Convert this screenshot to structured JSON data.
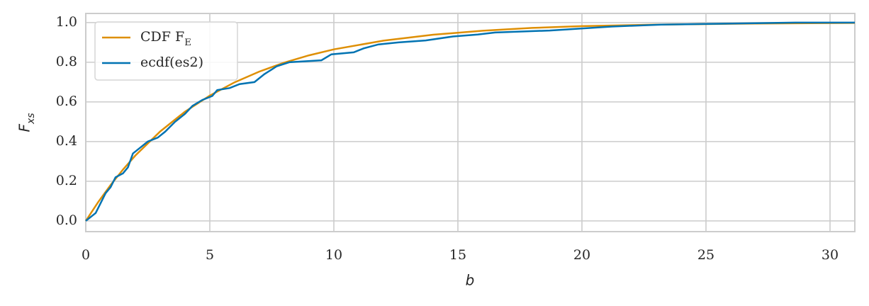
{
  "chart_data": {
    "type": "line",
    "xlabel": "b",
    "ylabel": "F_xs",
    "xlim": [
      0,
      31
    ],
    "ylim": [
      -0.054,
      1.046
    ],
    "xticks": [
      0,
      5,
      10,
      15,
      20,
      25,
      30
    ],
    "yticks": [
      {
        "value": 0,
        "label": "0.0"
      },
      0.2,
      0.4,
      0.6,
      0.8,
      {
        "value": 1,
        "label": "1.0"
      }
    ],
    "grid": true,
    "legend": "upper left",
    "series": [
      {
        "name": "CDF F_E",
        "color": "#de8f05",
        "x": [
          0,
          0.5,
          1,
          1.5,
          2,
          3,
          4,
          5,
          6,
          7,
          8,
          9,
          10,
          12,
          14,
          16,
          18,
          20,
          23,
          27,
          31
        ],
        "values": [
          0,
          0.095,
          0.181,
          0.259,
          0.33,
          0.451,
          0.551,
          0.632,
          0.699,
          0.753,
          0.798,
          0.835,
          0.865,
          0.909,
          0.939,
          0.959,
          0.973,
          0.982,
          0.99,
          0.995,
          0.998
        ]
      },
      {
        "name": "ecdf(es2)",
        "color": "#0173b2",
        "x": [
          0,
          0.2,
          0.4,
          0.6,
          0.8,
          1.0,
          1.2,
          1.5,
          1.7,
          1.9,
          2.2,
          2.5,
          2.9,
          3.2,
          3.6,
          4.0,
          4.3,
          4.7,
          5.1,
          5.3,
          5.8,
          6.2,
          6.8,
          7.2,
          7.7,
          8.2,
          9.5,
          9.9,
          10.8,
          11.2,
          11.8,
          12.6,
          13.7,
          14.8,
          15.8,
          16.5,
          18.7,
          21.2,
          23.2,
          28.6,
          31
        ],
        "values": [
          0,
          0.02,
          0.04,
          0.09,
          0.14,
          0.17,
          0.22,
          0.24,
          0.27,
          0.34,
          0.37,
          0.4,
          0.42,
          0.45,
          0.5,
          0.54,
          0.58,
          0.61,
          0.63,
          0.66,
          0.67,
          0.69,
          0.7,
          0.74,
          0.78,
          0.8,
          0.81,
          0.84,
          0.85,
          0.87,
          0.89,
          0.9,
          0.91,
          0.93,
          0.94,
          0.95,
          0.96,
          0.98,
          0.99,
          1.0,
          1.0
        ]
      }
    ]
  }
}
